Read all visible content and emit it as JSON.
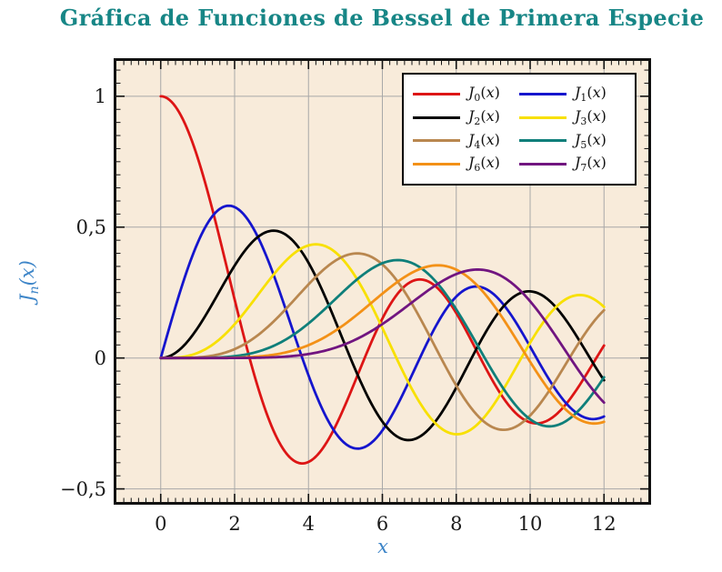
{
  "page": {
    "background": "#ffffff"
  },
  "chart_data": {
    "type": "line",
    "title": "Gráfica de Funciones de Bessel de Primera Especie",
    "title_color": "#178686",
    "xlabel": "x",
    "ylabel_parts": {
      "symbol": "J",
      "sub": "n",
      "arg": "(x)"
    },
    "axis_label_color": "#3d85c8",
    "tick_label_color": "#1a1a1a",
    "plot_background": "#f8ebda",
    "grid_color": "#a8a8a8",
    "frame_color": "#111111",
    "grid": true,
    "legend_position": "top-right",
    "xlim": [
      -1.2,
      13.2
    ],
    "ylim": [
      -0.55,
      1.135
    ],
    "domain": [
      0,
      12
    ],
    "x_major_ticks": [
      0,
      2,
      4,
      6,
      8,
      10,
      12
    ],
    "x_tick_labels": [
      "0",
      "2",
      "4",
      "6",
      "8",
      "10",
      "12"
    ],
    "y_major_ticks": [
      1,
      0.5,
      0,
      -0.5
    ],
    "y_tick_labels": [
      "1",
      "0,5",
      "0",
      "−0,5"
    ],
    "x_minor_step": 0.2,
    "y_minor_step": 0.05,
    "curve_width": 2.8,
    "sample_step": 0.05,
    "legend": {
      "symbol": "J",
      "arg": "(x)"
    },
    "x_integer_samples": [
      0,
      1,
      2,
      3,
      4,
      5,
      6,
      7,
      8,
      9,
      10,
      11,
      12
    ],
    "series": [
      {
        "name": "J0(x)",
        "bessel_order": 0,
        "color": "#dd1515",
        "values_at_integer_x": [
          1.0,
          0.7652,
          0.2239,
          -0.2601,
          -0.3971,
          -0.1776,
          0.1506,
          0.3001,
          0.1717,
          -0.0903,
          -0.2459,
          -0.1712,
          0.0477
        ]
      },
      {
        "name": "J1(x)",
        "bessel_order": 1,
        "color": "#1515cd",
        "values_at_integer_x": [
          0.0,
          0.4401,
          0.5767,
          0.3391,
          -0.066,
          -0.3276,
          -0.2767,
          -0.0047,
          0.2346,
          0.2453,
          0.0435,
          -0.1768,
          -0.2234
        ]
      },
      {
        "name": "J2(x)",
        "bessel_order": 2,
        "color": "#000000",
        "values_at_integer_x": [
          0.0,
          0.1149,
          0.3528,
          0.4861,
          0.3641,
          0.0466,
          -0.2429,
          -0.3014,
          -0.113,
          0.1448,
          0.2546,
          0.139,
          -0.0849
        ]
      },
      {
        "name": "J3(x)",
        "bessel_order": 3,
        "color": "#f8e000",
        "values_at_integer_x": [
          0.0,
          0.0196,
          0.1289,
          0.3091,
          0.4302,
          0.3648,
          0.1148,
          -0.1676,
          -0.2911,
          -0.1809,
          0.0584,
          0.2273,
          0.1951
        ]
      },
      {
        "name": "J4(x)",
        "bessel_order": 4,
        "color": "#b9874f",
        "values_at_integer_x": [
          0.0,
          0.0025,
          0.034,
          0.132,
          0.2811,
          0.3912,
          0.3576,
          0.1578,
          -0.1054,
          -0.2655,
          -0.2196,
          -0.015,
          0.1825
        ]
      },
      {
        "name": "J5(x)",
        "bessel_order": 5,
        "color": "#0f7f7a",
        "values_at_integer_x": [
          0.0,
          0.0002,
          0.007,
          0.043,
          0.1321,
          0.2611,
          0.3621,
          0.3479,
          0.1858,
          -0.055,
          -0.2341,
          -0.2383,
          -0.0735
        ]
      },
      {
        "name": "J6(x)",
        "bessel_order": 6,
        "color": "#f39117",
        "values_at_integer_x": [
          0.0,
          0.0,
          0.0012,
          0.0114,
          0.0491,
          0.131,
          0.2458,
          0.3392,
          0.3376,
          0.2043,
          -0.0145,
          -0.2016,
          -0.2437
        ]
      },
      {
        "name": "J7(x)",
        "bessel_order": 7,
        "color": "#711580",
        "values_at_integer_x": [
          0.0,
          0.0,
          0.0002,
          0.0025,
          0.0152,
          0.0534,
          0.1296,
          0.2336,
          0.3206,
          0.3275,
          0.2167,
          0.0184,
          -0.1703
        ]
      }
    ]
  }
}
